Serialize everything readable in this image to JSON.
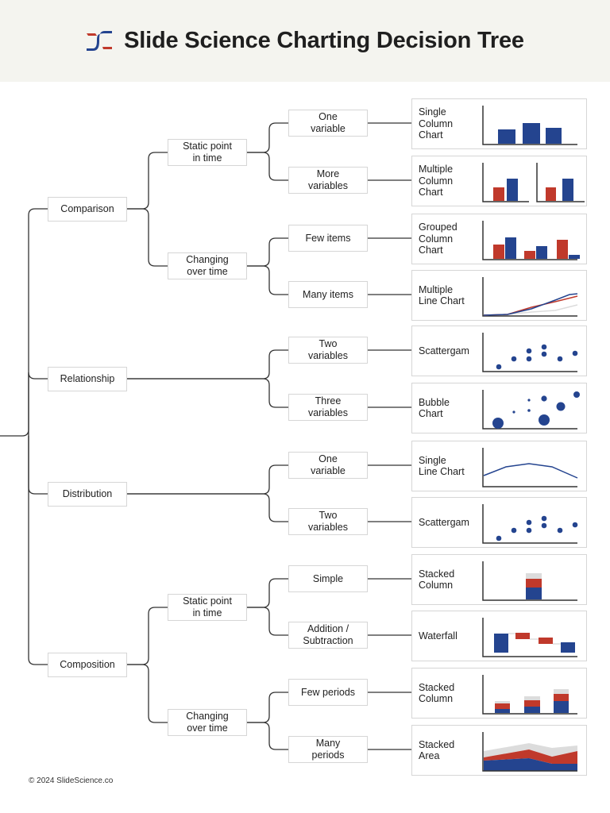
{
  "header": {
    "title": "Slide Science Charting Decision Tree",
    "logo": "slidescience-logo"
  },
  "colors": {
    "blue": "#24448f",
    "red": "#c0392b",
    "grey": "#dcdcdc",
    "line": "#333333"
  },
  "tree": [
    {
      "label": "Comparison",
      "children": [
        {
          "label": "Static point in time",
          "children": [
            {
              "label": "One variable",
              "chart": {
                "name": "Single Column Chart",
                "type": "single-column"
              }
            },
            {
              "label": "More variables",
              "chart": {
                "name": "Multiple Column Chart",
                "type": "multiple-column"
              }
            }
          ]
        },
        {
          "label": "Changing over time",
          "children": [
            {
              "label": "Few items",
              "chart": {
                "name": "Grouped Column Chart",
                "type": "grouped-column"
              }
            },
            {
              "label": "Many items",
              "chart": {
                "name": "Multiple Line Chart",
                "type": "multiple-line"
              }
            }
          ]
        }
      ]
    },
    {
      "label": "Relationship",
      "children": [
        {
          "label": null,
          "children": [
            {
              "label": "Two variables",
              "chart": {
                "name": "Scattergam",
                "type": "scatter"
              }
            },
            {
              "label": "Three variables",
              "chart": {
                "name": "Bubble Chart",
                "type": "bubble"
              }
            }
          ]
        }
      ]
    },
    {
      "label": "Distribution",
      "children": [
        {
          "label": null,
          "children": [
            {
              "label": "One variable",
              "chart": {
                "name": "Single Line Chart",
                "type": "single-line"
              }
            },
            {
              "label": "Two variables",
              "chart": {
                "name": "Scattergam",
                "type": "scatter"
              }
            }
          ]
        }
      ]
    },
    {
      "label": "Composition",
      "children": [
        {
          "label": "Static point in time",
          "children": [
            {
              "label": "Simple",
              "chart": {
                "name": "Stacked Column",
                "type": "stacked-column-single"
              }
            },
            {
              "label": "Addition / Subtraction",
              "chart": {
                "name": "Waterfall",
                "type": "waterfall"
              }
            }
          ]
        },
        {
          "label": "Changing over time",
          "children": [
            {
              "label": "Few periods",
              "chart": {
                "name": "Stacked Column",
                "type": "stacked-column"
              }
            },
            {
              "label": "Many periods",
              "chart": {
                "name": "Stacked Area",
                "type": "stacked-area"
              }
            }
          ]
        }
      ]
    }
  ],
  "footer": {
    "text": "© 2024 SlideScience.co"
  }
}
